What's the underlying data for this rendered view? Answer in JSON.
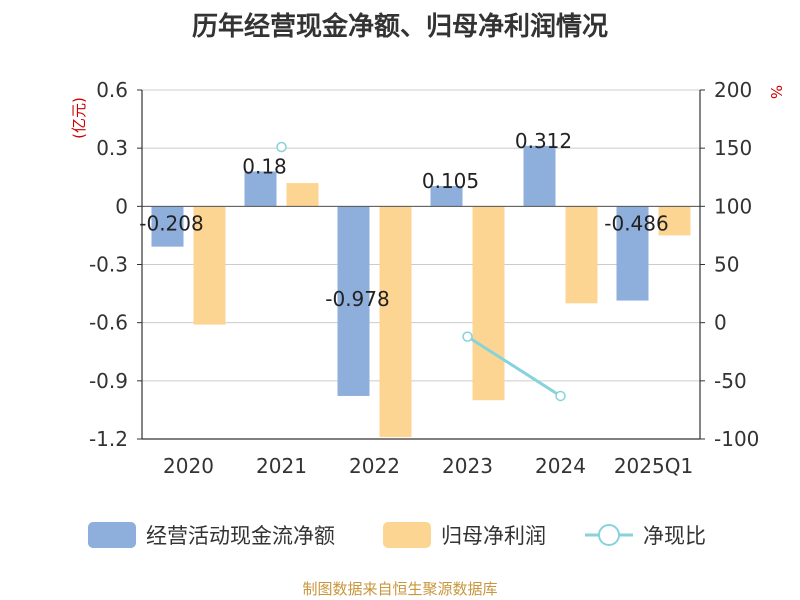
{
  "chart_data": {
    "type": "bar",
    "title": "历年经营现金净额、归母净利润情况",
    "categories": [
      "2020",
      "2021",
      "2022",
      "2023",
      "2024",
      "2025Q1"
    ],
    "left_axis": {
      "unit": "(亿元)",
      "ylim": [
        -1.2,
        0.6
      ],
      "ticks": [
        0.6,
        0.3,
        0,
        -0.3,
        -0.6,
        -0.9,
        -1.2
      ],
      "tick_labels": [
        "0.6",
        "0.3",
        "0",
        "-0.3",
        "-0.6",
        "-0.9",
        "-1.2"
      ]
    },
    "right_axis": {
      "unit": "%",
      "ylim": [
        -100,
        200
      ],
      "ticks": [
        200,
        150,
        100,
        50,
        0,
        -50,
        -100
      ],
      "tick_labels": [
        "200",
        "150",
        "100",
        "50",
        "0",
        "-50",
        "-100"
      ]
    },
    "grid": true,
    "legend_position": "bottom",
    "series": [
      {
        "name": "经营活动现金流净额",
        "type": "bar",
        "axis": "left",
        "color": "#8eaedc",
        "values": [
          -0.208,
          0.18,
          -0.978,
          0.105,
          0.312,
          -0.486
        ],
        "data_labels": [
          "-0.208",
          "0.18",
          "-0.978",
          "0.105",
          "0.312",
          "-0.486"
        ]
      },
      {
        "name": "归母净利润",
        "type": "bar",
        "axis": "left",
        "color": "#fdd592",
        "values": [
          -0.61,
          0.12,
          -1.19,
          -1.0,
          -0.5,
          -0.15
        ]
      },
      {
        "name": "净现比",
        "type": "line",
        "axis": "right",
        "color": "#86d3dc",
        "values": [
          null,
          151,
          null,
          -12,
          -63,
          null
        ]
      }
    ]
  },
  "source_note": "制图数据来自恒生聚源数据库"
}
